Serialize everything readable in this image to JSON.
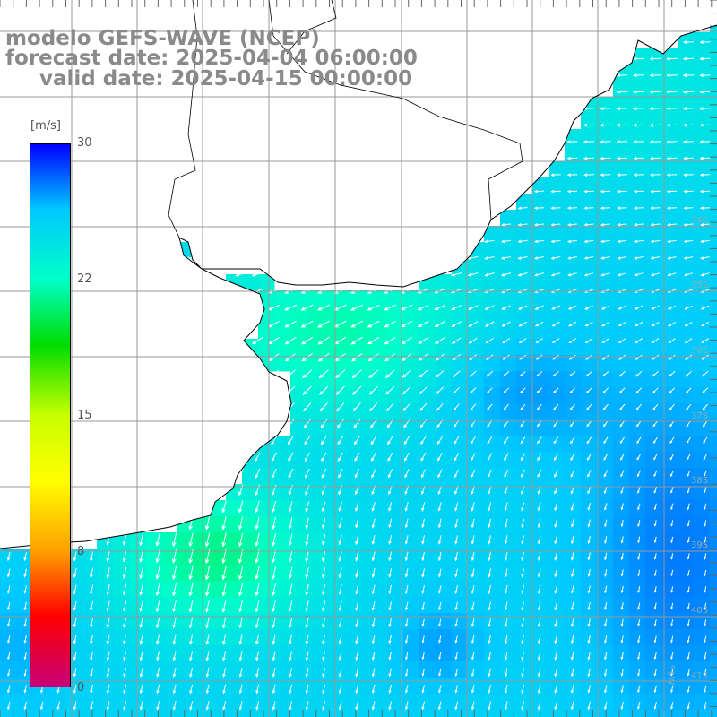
{
  "titles": {
    "line1": "modelo GEFS-WAVE (NCEP)",
    "line2": "forecast date: 2025-04-04 06:00:00",
    "line3": "valid date: 2025-04-15 00:00:00"
  },
  "colorbar": {
    "unit": "[m/s]",
    "ticks": [
      "30",
      "22",
      "15",
      "8",
      "0"
    ],
    "tick_values": [
      30,
      22,
      15,
      8,
      0
    ],
    "range": [
      0,
      30
    ],
    "colors": [
      "#0000ff",
      "#00c8ff",
      "#00ffc8",
      "#00dc00",
      "#c8ff00",
      "#ffff00",
      "#ffa000",
      "#ff0000",
      "#c80078"
    ]
  },
  "map": {
    "variable": "wind speed and direction",
    "lat_labels": [
      "34S",
      "35S",
      "36S",
      "37S",
      "38S",
      "39S",
      "40S",
      "41S"
    ],
    "lon_labels": [
      "51W"
    ],
    "land_color": "#ffffff",
    "grid_color": "#999999",
    "arrow_color": "#ffffff"
  }
}
